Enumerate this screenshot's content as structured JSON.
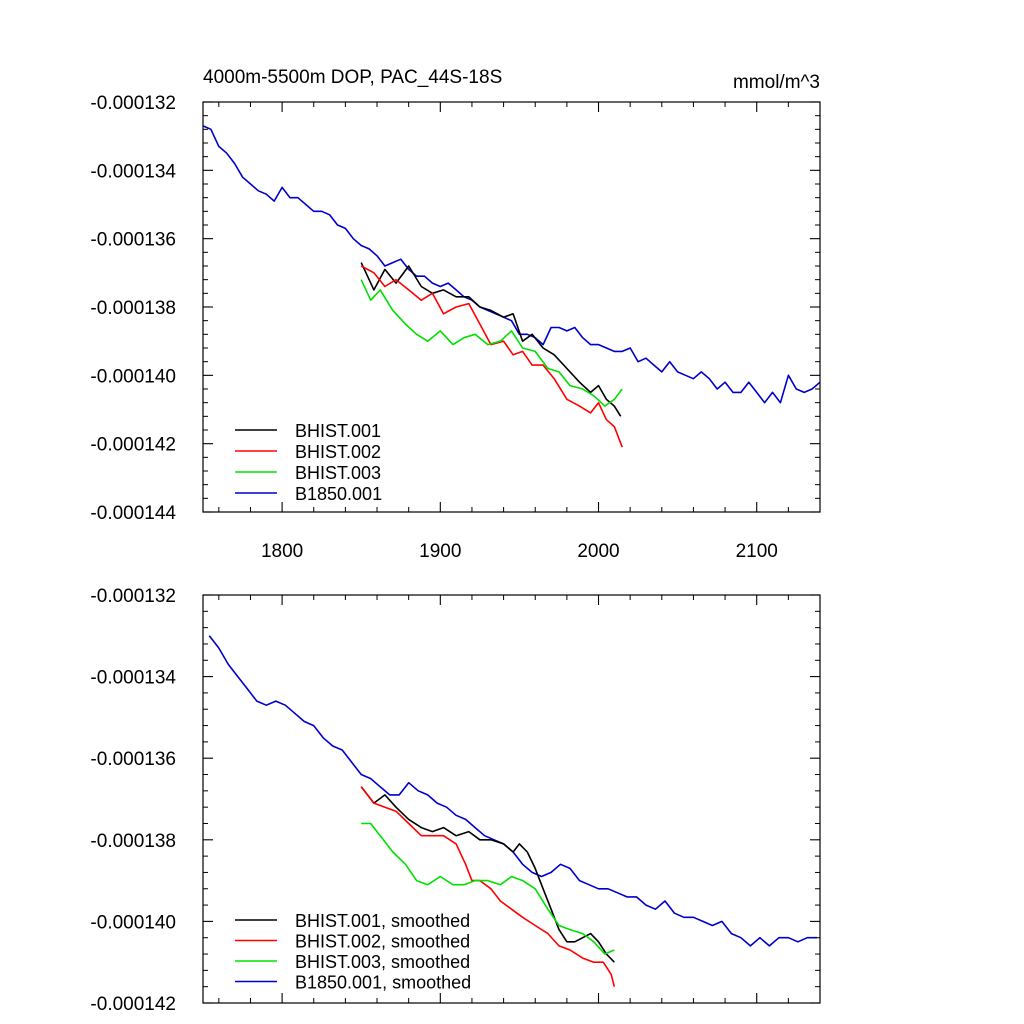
{
  "chart_data": [
    {
      "type": "line",
      "title_left": "4000m-5500m DOP, PAC_44S-18S",
      "title_right": "mmol/m^3",
      "xlim": [
        1750,
        2140
      ],
      "ylim": [
        -0.000144,
        -0.000132
      ],
      "xticks": [
        1800,
        1900,
        2000,
        2100
      ],
      "xtick_labels": [
        "1800",
        "1900",
        "2000",
        "2100"
      ],
      "yticks": [
        -0.000144,
        -0.000142,
        -0.00014,
        -0.000138,
        -0.000136,
        -0.000134,
        -0.000132
      ],
      "ytick_labels": [
        "-0.000144",
        "-0.000142",
        "-0.000140",
        "-0.000138",
        "-0.000136",
        "-0.000134",
        "-0.000132"
      ],
      "legend_position": "bottom-left",
      "series": [
        {
          "name": "BHIST.001",
          "color": "#000000",
          "x": [
            1850,
            1858,
            1865,
            1872,
            1880,
            1888,
            1895,
            1902,
            1910,
            1918,
            1925,
            1932,
            1940,
            1946,
            1952,
            1958,
            1965,
            1972,
            1980,
            1988,
            1995,
            2000,
            2005,
            2010,
            2014
          ],
          "y": [
            -0.0001367,
            -0.0001375,
            -0.0001369,
            -0.0001373,
            -0.0001368,
            -0.0001374,
            -0.0001376,
            -0.0001375,
            -0.0001377,
            -0.0001377,
            -0.000138,
            -0.0001381,
            -0.0001383,
            -0.0001382,
            -0.000139,
            -0.0001388,
            -0.0001392,
            -0.0001394,
            -0.0001398,
            -0.0001402,
            -0.0001405,
            -0.0001403,
            -0.0001407,
            -0.0001409,
            -0.0001412
          ]
        },
        {
          "name": "BHIST.002",
          "color": "#ff0000",
          "x": [
            1850,
            1858,
            1865,
            1872,
            1880,
            1888,
            1895,
            1902,
            1910,
            1918,
            1925,
            1932,
            1940,
            1946,
            1952,
            1958,
            1965,
            1972,
            1980,
            1988,
            1995,
            2000,
            2005,
            2010,
            2015
          ],
          "y": [
            -0.0001368,
            -0.000137,
            -0.0001374,
            -0.0001372,
            -0.0001375,
            -0.0001378,
            -0.0001376,
            -0.0001382,
            -0.000138,
            -0.0001379,
            -0.0001385,
            -0.0001391,
            -0.000139,
            -0.0001394,
            -0.0001393,
            -0.0001397,
            -0.0001397,
            -0.0001401,
            -0.0001407,
            -0.0001409,
            -0.0001411,
            -0.0001408,
            -0.0001413,
            -0.0001415,
            -0.0001421
          ]
        },
        {
          "name": "BHIST.003",
          "color": "#00e000",
          "x": [
            1850,
            1856,
            1862,
            1870,
            1878,
            1885,
            1892,
            1900,
            1908,
            1915,
            1922,
            1930,
            1938,
            1945,
            1952,
            1960,
            1968,
            1975,
            1982,
            1990,
            1997,
            2004,
            2010,
            2015
          ],
          "y": [
            -0.0001372,
            -0.0001378,
            -0.0001375,
            -0.0001381,
            -0.0001385,
            -0.0001388,
            -0.000139,
            -0.0001387,
            -0.0001391,
            -0.0001389,
            -0.0001388,
            -0.0001391,
            -0.000139,
            -0.0001387,
            -0.0001392,
            -0.0001393,
            -0.0001398,
            -0.0001399,
            -0.0001403,
            -0.0001404,
            -0.0001406,
            -0.0001409,
            -0.0001407,
            -0.0001404
          ]
        },
        {
          "name": "B1850.001",
          "color": "#0000cc",
          "x": [
            1750,
            1755,
            1760,
            1765,
            1770,
            1775,
            1780,
            1785,
            1790,
            1795,
            1800,
            1805,
            1810,
            1815,
            1820,
            1825,
            1830,
            1835,
            1840,
            1845,
            1850,
            1855,
            1860,
            1865,
            1870,
            1875,
            1880,
            1885,
            1890,
            1895,
            1900,
            1905,
            1910,
            1915,
            1920,
            1925,
            1930,
            1935,
            1940,
            1945,
            1950,
            1955,
            1960,
            1965,
            1970,
            1975,
            1980,
            1985,
            1990,
            1995,
            2000,
            2005,
            2010,
            2015,
            2020,
            2025,
            2030,
            2035,
            2040,
            2045,
            2050,
            2055,
            2060,
            2065,
            2070,
            2075,
            2080,
            2085,
            2090,
            2095,
            2100,
            2105,
            2110,
            2115,
            2120,
            2125,
            2130,
            2135,
            2140
          ],
          "y": [
            -0.0001327,
            -0.0001328,
            -0.0001333,
            -0.0001335,
            -0.0001338,
            -0.0001342,
            -0.0001344,
            -0.0001346,
            -0.0001347,
            -0.0001349,
            -0.0001345,
            -0.0001348,
            -0.0001348,
            -0.000135,
            -0.0001352,
            -0.0001352,
            -0.0001353,
            -0.0001356,
            -0.0001357,
            -0.000136,
            -0.0001362,
            -0.0001363,
            -0.0001365,
            -0.0001368,
            -0.0001367,
            -0.0001366,
            -0.0001369,
            -0.0001371,
            -0.0001371,
            -0.0001373,
            -0.0001374,
            -0.0001373,
            -0.0001375,
            -0.0001377,
            -0.0001378,
            -0.000138,
            -0.0001381,
            -0.0001382,
            -0.0001383,
            -0.0001384,
            -0.0001388,
            -0.0001388,
            -0.0001389,
            -0.0001391,
            -0.0001386,
            -0.0001386,
            -0.0001387,
            -0.0001386,
            -0.0001389,
            -0.0001391,
            -0.0001391,
            -0.0001392,
            -0.0001393,
            -0.0001393,
            -0.0001392,
            -0.0001396,
            -0.0001395,
            -0.0001397,
            -0.0001399,
            -0.0001396,
            -0.0001399,
            -0.00014,
            -0.0001401,
            -0.0001399,
            -0.0001401,
            -0.0001404,
            -0.0001402,
            -0.0001405,
            -0.0001405,
            -0.0001402,
            -0.0001405,
            -0.0001408,
            -0.0001405,
            -0.0001408,
            -0.00014,
            -0.0001404,
            -0.0001405,
            -0.0001404,
            -0.0001402
          ]
        }
      ]
    },
    {
      "type": "line",
      "xlim": [
        1750,
        2140
      ],
      "ylim": [
        -0.000142,
        -0.000132
      ],
      "xticks": [
        1800,
        1900,
        2000,
        2100
      ],
      "yticks": [
        -0.000142,
        -0.00014,
        -0.000138,
        -0.000136,
        -0.000134,
        -0.000132
      ],
      "ytick_labels": [
        "-0.000142",
        "-0.000140",
        "-0.000138",
        "-0.000136",
        "-0.000134",
        "-0.000132"
      ],
      "legend_position": "bottom-left",
      "series": [
        {
          "name": "BHIST.001, smoothed",
          "color": "#000000",
          "x": [
            1850,
            1858,
            1865,
            1872,
            1880,
            1888,
            1895,
            1902,
            1910,
            1918,
            1925,
            1932,
            1940,
            1946,
            1950,
            1955,
            1960,
            1965,
            1970,
            1975,
            1980,
            1985,
            1990,
            1995,
            2000,
            2005,
            2010
          ],
          "y": [
            -0.0001367,
            -0.0001371,
            -0.0001369,
            -0.0001372,
            -0.0001375,
            -0.0001377,
            -0.0001378,
            -0.0001377,
            -0.0001379,
            -0.0001378,
            -0.000138,
            -0.000138,
            -0.0001381,
            -0.0001383,
            -0.0001381,
            -0.0001383,
            -0.0001387,
            -0.0001392,
            -0.0001397,
            -0.0001402,
            -0.0001405,
            -0.0001405,
            -0.0001404,
            -0.0001403,
            -0.0001405,
            -0.0001408,
            -0.000141
          ]
        },
        {
          "name": "BHIST.002, smoothed",
          "color": "#ff0000",
          "x": [
            1850,
            1858,
            1865,
            1872,
            1880,
            1888,
            1895,
            1902,
            1910,
            1916,
            1920,
            1925,
            1932,
            1938,
            1945,
            1952,
            1960,
            1968,
            1975,
            1982,
            1990,
            1997,
            2003,
            2008,
            2010
          ],
          "y": [
            -0.0001367,
            -0.0001371,
            -0.0001372,
            -0.0001373,
            -0.0001376,
            -0.0001379,
            -0.0001379,
            -0.0001379,
            -0.0001381,
            -0.0001386,
            -0.000139,
            -0.000139,
            -0.0001392,
            -0.0001395,
            -0.0001397,
            -0.0001399,
            -0.0001401,
            -0.0001403,
            -0.0001406,
            -0.0001407,
            -0.0001409,
            -0.000141,
            -0.000141,
            -0.0001413,
            -0.0001416
          ]
        },
        {
          "name": "BHIST.003, smoothed",
          "color": "#00e000",
          "x": [
            1850,
            1856,
            1862,
            1870,
            1878,
            1885,
            1892,
            1900,
            1908,
            1915,
            1922,
            1930,
            1938,
            1945,
            1952,
            1960,
            1968,
            1975,
            1982,
            1990,
            1997,
            2004,
            2010
          ],
          "y": [
            -0.0001376,
            -0.0001376,
            -0.0001379,
            -0.0001383,
            -0.0001386,
            -0.000139,
            -0.0001391,
            -0.0001389,
            -0.0001391,
            -0.0001391,
            -0.000139,
            -0.000139,
            -0.0001391,
            -0.0001389,
            -0.000139,
            -0.0001392,
            -0.0001397,
            -0.0001401,
            -0.0001402,
            -0.0001403,
            -0.0001405,
            -0.0001408,
            -0.0001407
          ]
        },
        {
          "name": "B1850.001, smoothed",
          "color": "#0000cc",
          "x": [
            1754,
            1760,
            1766,
            1772,
            1778,
            1784,
            1790,
            1796,
            1802,
            1808,
            1814,
            1820,
            1826,
            1832,
            1838,
            1844,
            1850,
            1856,
            1862,
            1868,
            1874,
            1880,
            1886,
            1892,
            1898,
            1904,
            1910,
            1916,
            1922,
            1928,
            1934,
            1940,
            1946,
            1952,
            1958,
            1964,
            1970,
            1976,
            1982,
            1988,
            1994,
            2000,
            2006,
            2012,
            2018,
            2024,
            2030,
            2036,
            2042,
            2048,
            2054,
            2060,
            2066,
            2072,
            2078,
            2084,
            2090,
            2096,
            2102,
            2108,
            2114,
            2120,
            2126,
            2132,
            2138
          ],
          "y": [
            -0.000133,
            -0.0001333,
            -0.0001337,
            -0.000134,
            -0.0001343,
            -0.0001346,
            -0.0001347,
            -0.0001346,
            -0.0001347,
            -0.0001349,
            -0.0001351,
            -0.0001352,
            -0.0001355,
            -0.0001357,
            -0.0001358,
            -0.0001361,
            -0.0001364,
            -0.0001365,
            -0.0001367,
            -0.0001369,
            -0.0001369,
            -0.0001366,
            -0.0001368,
            -0.0001369,
            -0.0001371,
            -0.0001372,
            -0.0001374,
            -0.0001375,
            -0.0001377,
            -0.0001379,
            -0.000138,
            -0.0001381,
            -0.0001383,
            -0.0001386,
            -0.0001388,
            -0.0001389,
            -0.0001388,
            -0.0001386,
            -0.0001387,
            -0.000139,
            -0.0001391,
            -0.0001392,
            -0.0001392,
            -0.0001393,
            -0.0001394,
            -0.0001394,
            -0.0001396,
            -0.0001397,
            -0.0001395,
            -0.0001398,
            -0.0001399,
            -0.0001399,
            -0.00014,
            -0.0001401,
            -0.00014,
            -0.0001403,
            -0.0001404,
            -0.0001406,
            -0.0001404,
            -0.0001406,
            -0.0001404,
            -0.0001404,
            -0.0001405,
            -0.0001404,
            -0.0001404
          ]
        }
      ]
    }
  ]
}
